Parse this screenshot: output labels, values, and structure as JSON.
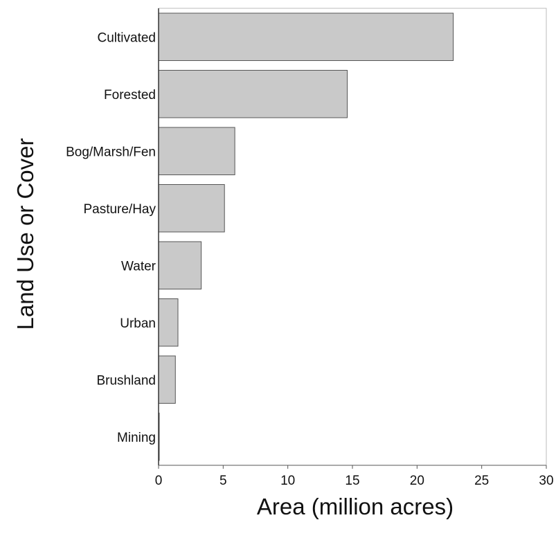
{
  "chart_data": {
    "type": "bar",
    "orientation": "horizontal",
    "categories": [
      "Cultivated",
      "Forested",
      "Bog/Marsh/Fen",
      "Pasture/Hay",
      "Water",
      "Urban",
      "Brushland",
      "Mining"
    ],
    "values": [
      22.8,
      14.6,
      5.9,
      5.1,
      3.3,
      1.5,
      1.3,
      0.05
    ],
    "xlabel": "Area (million acres)",
    "ylabel": "Land Use or Cover",
    "xlim": [
      0,
      30
    ],
    "xticks": [
      0,
      5,
      10,
      15,
      20,
      25,
      30
    ],
    "grid": false,
    "bar_color": "#c9c9c9"
  }
}
